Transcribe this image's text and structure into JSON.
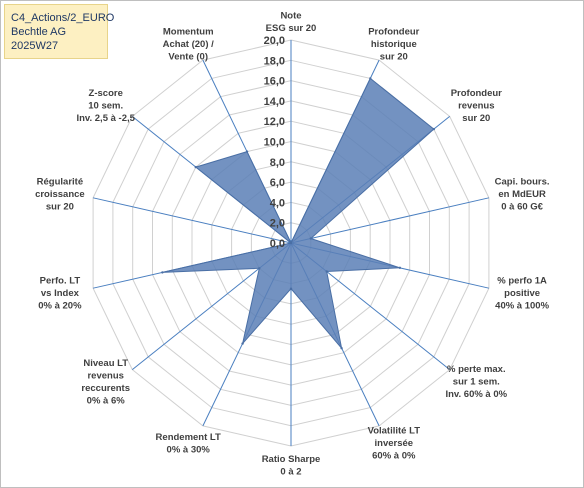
{
  "header": {
    "line1": "C4_Actions/2_EURO",
    "line2": "Bechtle AG",
    "line3": "2025W27"
  },
  "chart_data": {
    "type": "radar",
    "rmin": 0,
    "rmax": 20,
    "ticks": [
      "0,0",
      "2,0",
      "4,0",
      "6,0",
      "8,0",
      "10,0",
      "12,0",
      "14,0",
      "16,0",
      "18,0",
      "20,0"
    ],
    "axes": [
      {
        "label": [
          "Note",
          "ESG sur 20"
        ],
        "value": 0
      },
      {
        "label": [
          "Profondeur",
          "historique",
          "sur 20"
        ],
        "value": 18
      },
      {
        "label": [
          "Profondeur",
          "revenus",
          "sur 20"
        ],
        "value": 18
      },
      {
        "label": [
          "Capi. bours.",
          "en MdEUR",
          "0 à 60 G€"
        ],
        "value": 2
      },
      {
        "label": [
          "% perfo 1A",
          "positive",
          "40% à 100%"
        ],
        "value": 11
      },
      {
        "label": [
          "% perte max.",
          "sur 1 sem.",
          "Inv. 60% à 0%"
        ],
        "value": 4.5
      },
      {
        "label": [
          "Volatilité LT",
          "inversée",
          "60% à 0%"
        ],
        "value": 11.5
      },
      {
        "label": [
          "Ratio Sharpe",
          "0 à 2"
        ],
        "value": 4.5
      },
      {
        "label": [
          "Rendement LT",
          "0% à 30%"
        ],
        "value": 11
      },
      {
        "label": [
          "Niveau LT",
          "revenus",
          "reccurents",
          "0% à 6%"
        ],
        "value": 4
      },
      {
        "label": [
          "Perfo. LT",
          "vs Index",
          "0% à 20%"
        ],
        "value": 13
      },
      {
        "label": [
          "Régularité",
          "croissance",
          "sur 20"
        ],
        "value": 0
      },
      {
        "label": [
          "Z-score",
          "10 sem.",
          "Inv. 2,5 à -2,5"
        ],
        "value": 12
      },
      {
        "label": [
          "Momentum",
          "Achat (20) /",
          "Vente (0)"
        ],
        "value": 10
      }
    ],
    "colors": {
      "fill": "#5b7fb6",
      "fill_opacity": 0.85,
      "stroke": "#4a6fa5",
      "grid": "#d0d0d0",
      "spoke": "#4a7fc0"
    }
  }
}
